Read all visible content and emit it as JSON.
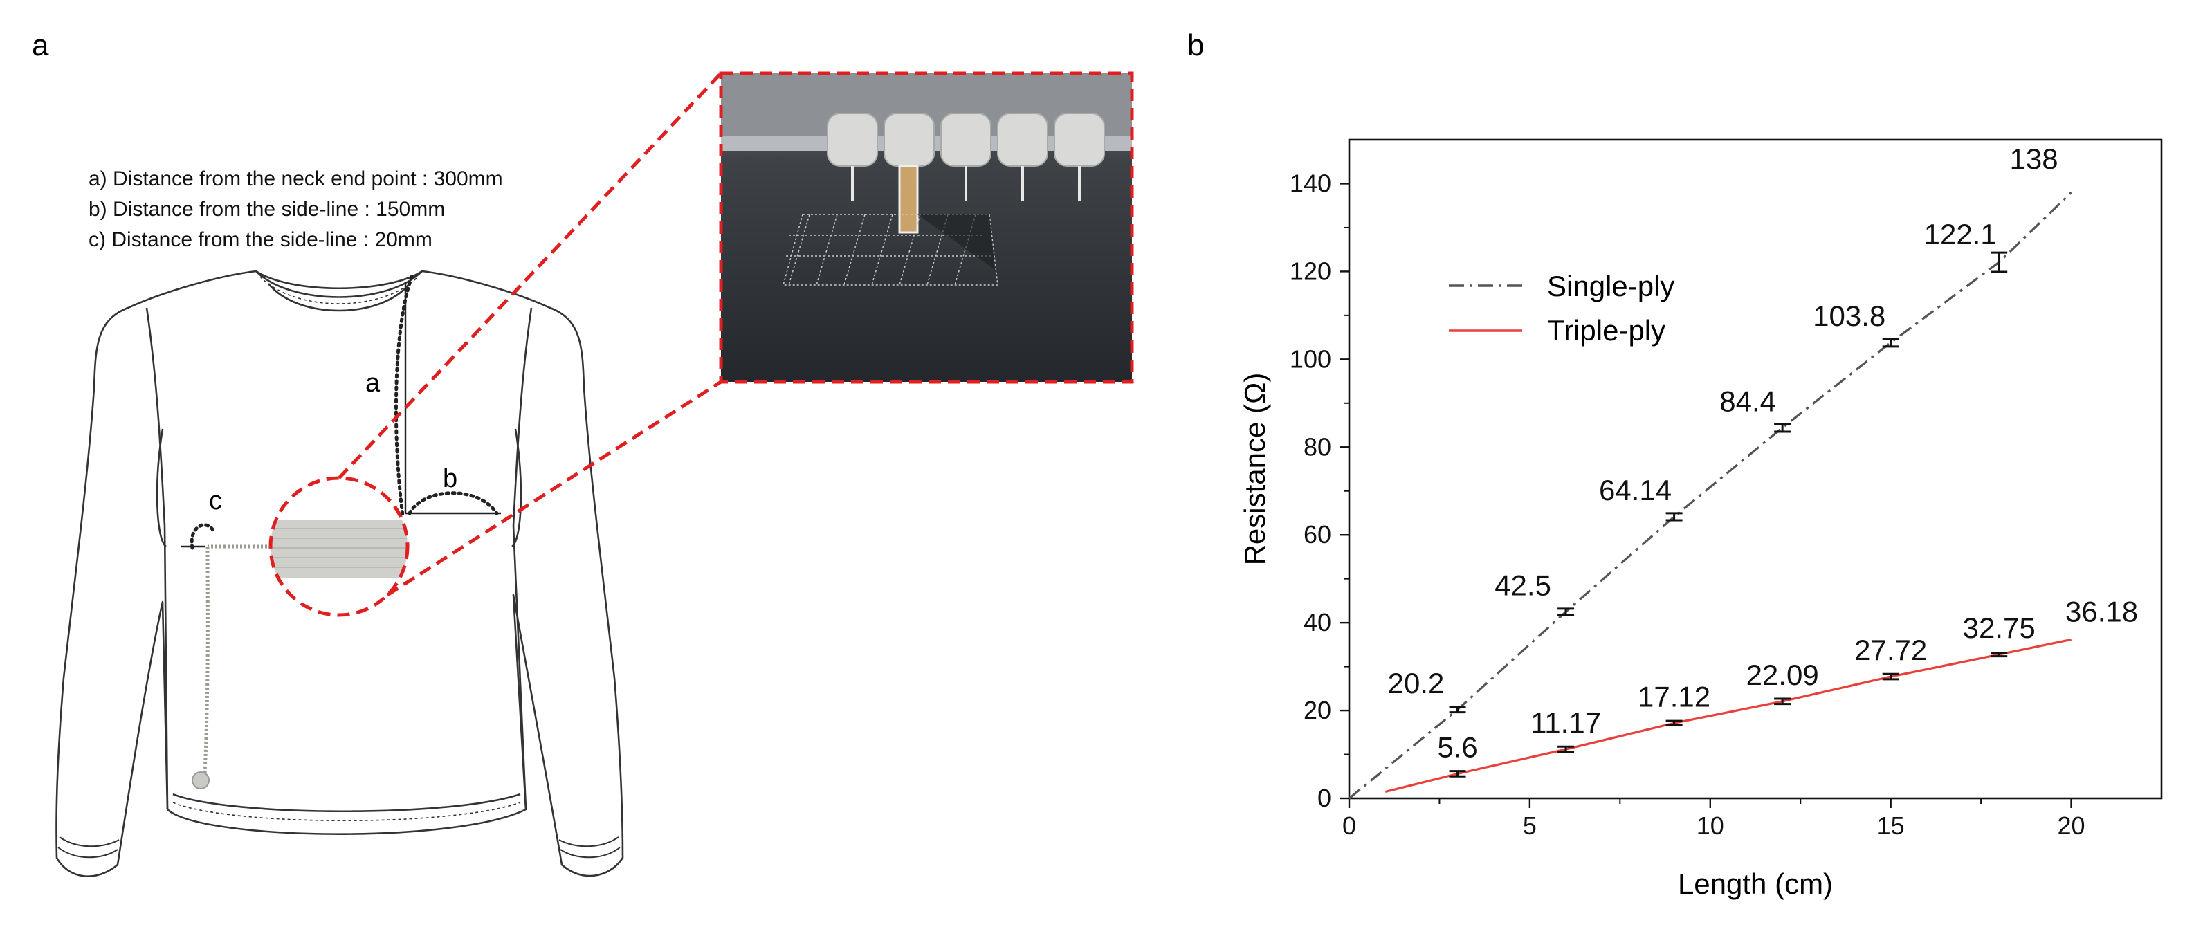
{
  "panel_a": {
    "label": "a",
    "notes": [
      "a) Distance from the neck end point : 300mm",
      "b) Distance from the side-line : 150mm",
      "c) Distance from the side-line : 20mm"
    ],
    "marker_a": "a",
    "marker_b": "b",
    "marker_c": "c",
    "colors": {
      "highlight": "#e02020",
      "line": "#333333",
      "swatch": "#cfcfcc"
    }
  },
  "panel_b": {
    "label": "b"
  },
  "chart_data": {
    "type": "line",
    "title": "",
    "xlabel": "Length (cm)",
    "ylabel": "Resistance (Ω)",
    "xlim": [
      0,
      22.5
    ],
    "ylim": [
      0,
      150
    ],
    "xticks": [
      0,
      5,
      10,
      15,
      20
    ],
    "yticks": [
      0,
      20,
      40,
      60,
      80,
      100,
      120,
      140
    ],
    "grid": false,
    "legend_position": "upper-left",
    "series": [
      {
        "name": "Single-ply",
        "color": "#555555",
        "line_style": "dash-dot",
        "x": [
          3,
          6,
          9,
          12,
          15,
          18
        ],
        "values": [
          20.2,
          42.5,
          64.14,
          84.4,
          103.8,
          122.1
        ],
        "error": [
          0.6,
          0.7,
          0.8,
          0.9,
          0.9,
          2.2
        ],
        "labels": [
          "20.2",
          "42.5",
          "64.14",
          "84.4",
          "103.8",
          "122.1"
        ],
        "line_points": [
          [
            0,
            0
          ],
          [
            3,
            20.2
          ],
          [
            6,
            42.5
          ],
          [
            9,
            64.14
          ],
          [
            12,
            84.4
          ],
          [
            15,
            103.8
          ],
          [
            18,
            122.1
          ],
          [
            20,
            138
          ]
        ],
        "endpoint": {
          "x": 20,
          "y": 138,
          "label": "138"
        }
      },
      {
        "name": "Triple-ply",
        "color": "#e8413c",
        "line_style": "solid",
        "x": [
          3,
          6,
          9,
          12,
          15,
          18
        ],
        "values": [
          5.6,
          11.17,
          17.12,
          22.09,
          27.72,
          32.75
        ],
        "error": [
          0.6,
          0.6,
          0.5,
          0.6,
          0.6,
          0.4
        ],
        "labels": [
          "5.6",
          "11.17",
          "17.12",
          "22.09",
          "27.72",
          "32.75"
        ],
        "line_points": [
          [
            1,
            1.5
          ],
          [
            3,
            5.6
          ],
          [
            6,
            11.17
          ],
          [
            9,
            17.12
          ],
          [
            12,
            22.09
          ],
          [
            15,
            27.72
          ],
          [
            18,
            32.75
          ],
          [
            20,
            36.18
          ]
        ],
        "endpoint": {
          "x": 20,
          "y": 36.18,
          "label": "36.18"
        }
      }
    ]
  }
}
